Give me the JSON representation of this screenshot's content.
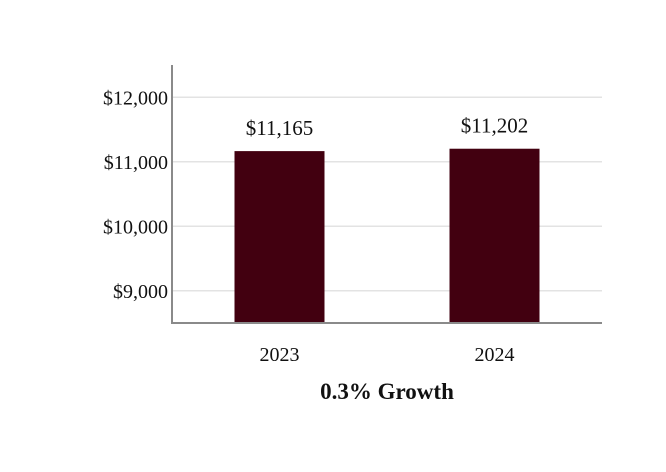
{
  "chart_data": {
    "type": "bar",
    "categories": [
      "2023",
      "2024"
    ],
    "values": [
      11165,
      11202
    ],
    "data_labels": [
      "$11,165",
      "$11,202"
    ],
    "title": "",
    "xlabel": "0.3% Growth",
    "ylabel": "",
    "ylim": [
      8500,
      12500
    ],
    "yticks": [
      9000,
      10000,
      11000,
      12000
    ],
    "ytick_labels": [
      "$9,000",
      "$10,000",
      "$11,000",
      "$12,000"
    ],
    "grid": true,
    "legend": "none",
    "colors": {
      "bar": "#420010",
      "grid": "#e3e3e3",
      "axis": "#8a8a8a",
      "text": "#111111"
    }
  }
}
